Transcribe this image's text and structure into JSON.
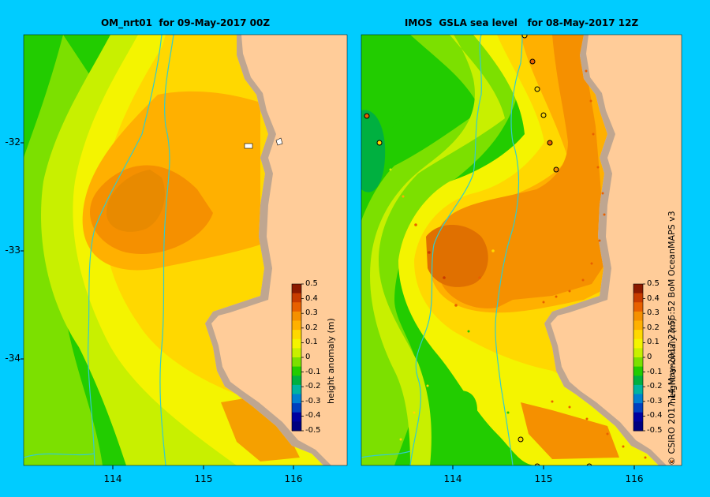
{
  "panels": [
    {
      "title": "OM_nrt01  for 09-May-2017 00Z"
    },
    {
      "title": "IMOS  GSLA sea level   for 08-May-2017 12Z"
    }
  ],
  "axes": {
    "y_ticks": [
      "-32",
      "-33",
      "-34"
    ],
    "x_ticks_left": [
      "114",
      "115",
      "116"
    ],
    "x_ticks_right": [
      "114",
      "115",
      "116"
    ]
  },
  "colorbar": {
    "title": "height anomaly (m)",
    "ticks": [
      "0.5",
      "0.4",
      "0.3",
      "0.2",
      "0.1",
      "0",
      "-0.1",
      "-0.2",
      "-0.3",
      "-0.4",
      "-0.5"
    ],
    "colors": [
      "#8b1a00",
      "#c83c00",
      "#e86000",
      "#f59000",
      "#ffb000",
      "#ffd800",
      "#f4f400",
      "#c8f000",
      "#7ce000",
      "#22cc00",
      "#00b040",
      "#00b4a0",
      "#0080d0",
      "#0040c0",
      "#0000a0",
      "#000080"
    ]
  },
  "credit": "© CSIRO 2017   14-May-2017 23:55:52 BoM OceanMAPS v3",
  "colors": {
    "background": "#00ccff",
    "land": "#ffcc99",
    "coast": "#bfa690",
    "bathy": "#33cccc"
  }
}
